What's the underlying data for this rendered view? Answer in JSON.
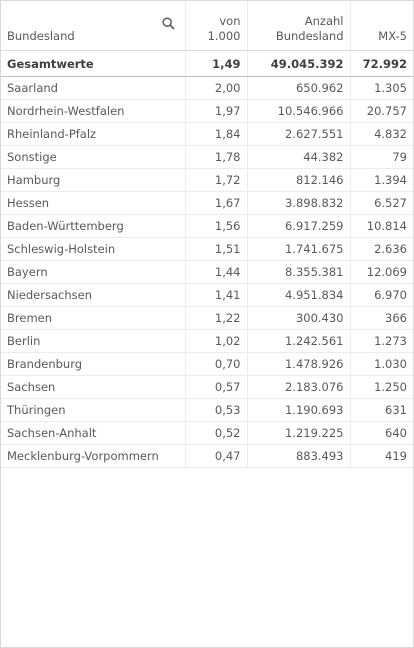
{
  "table": {
    "headers": [
      [
        "Bundesland"
      ],
      [
        "von",
        "1.000"
      ],
      [
        "Anzahl",
        "Bundesland"
      ],
      [
        "MX-5"
      ]
    ],
    "totals": [
      "Gesamtwerte",
      "1,49",
      "49.045.392",
      "72.992"
    ],
    "rows": [
      [
        "Saarland",
        "2,00",
        "650.962",
        "1.305"
      ],
      [
        "Nordrhein-Westfalen",
        "1,97",
        "10.546.966",
        "20.757"
      ],
      [
        "Rheinland-Pfalz",
        "1,84",
        "2.627.551",
        "4.832"
      ],
      [
        "Sonstige",
        "1,78",
        "44.382",
        "79"
      ],
      [
        "Hamburg",
        "1,72",
        "812.146",
        "1.394"
      ],
      [
        "Hessen",
        "1,67",
        "3.898.832",
        "6.527"
      ],
      [
        "Baden-Württemberg",
        "1,56",
        "6.917.259",
        "10.814"
      ],
      [
        "Schleswig-Holstein",
        "1,51",
        "1.741.675",
        "2.636"
      ],
      [
        "Bayern",
        "1,44",
        "8.355.381",
        "12.069"
      ],
      [
        "Niedersachsen",
        "1,41",
        "4.951.834",
        "6.970"
      ],
      [
        "Bremen",
        "1,22",
        "300.430",
        "366"
      ],
      [
        "Berlin",
        "1,02",
        "1.242.561",
        "1.273"
      ],
      [
        "Brandenburg",
        "0,70",
        "1.478.926",
        "1.030"
      ],
      [
        "Sachsen",
        "0,57",
        "2.183.076",
        "1.250"
      ],
      [
        "Thüringen",
        "0,53",
        "1.190.693",
        "631"
      ],
      [
        "Sachsen-Anhalt",
        "0,52",
        "1.219.225",
        "640"
      ],
      [
        "Mecklenburg-Vorpommern",
        "0,47",
        "883.493",
        "419"
      ]
    ]
  }
}
